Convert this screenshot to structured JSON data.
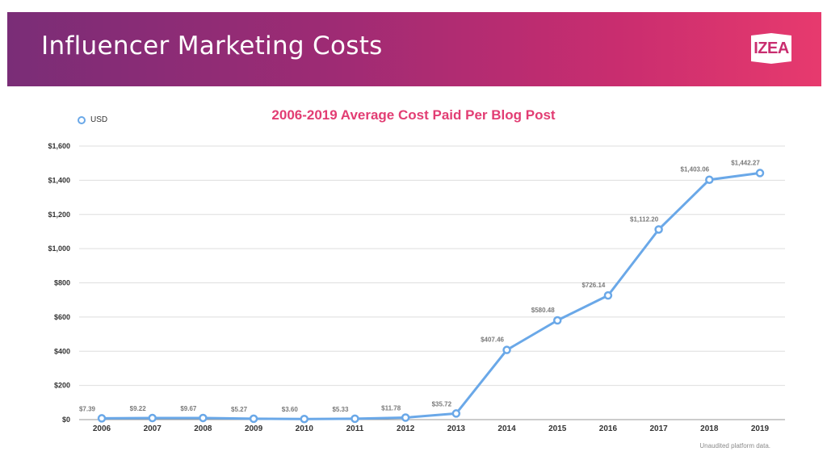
{
  "header": {
    "title": "Influencer Marketing Costs",
    "logo_text": "IZEA",
    "gradient_start": "#7a2d77",
    "gradient_end": "#e73a6e"
  },
  "footnote": "Unaudited platform data.",
  "chart_data": {
    "type": "line",
    "title": "2006-2019 Average Cost Paid Per Blog Post",
    "legend_position": "top-left",
    "grid": true,
    "ylim": [
      0,
      1600
    ],
    "yticks": [
      0,
      200,
      400,
      600,
      800,
      1000,
      1200,
      1400,
      1600
    ],
    "ytick_labels": [
      "$0",
      "$200",
      "$400",
      "$600",
      "$800",
      "$1,000",
      "$1,200",
      "$1,400",
      "$1,600"
    ],
    "categories": [
      "2006",
      "2007",
      "2008",
      "2009",
      "2010",
      "2011",
      "2012",
      "2013",
      "2014",
      "2015",
      "2016",
      "2017",
      "2018",
      "2019"
    ],
    "series": [
      {
        "name": "USD",
        "color": "#6aa8e8",
        "values": [
          7.39,
          9.22,
          9.67,
          5.27,
          3.6,
          5.33,
          11.78,
          35.72,
          407.46,
          580.48,
          726.14,
          1112.2,
          1403.06,
          1442.27
        ],
        "labels": [
          "$7.39",
          "$9.22",
          "$9.67",
          "$5.27",
          "$3.60",
          "$5.33",
          "$11.78",
          "$35.72",
          "$407.46",
          "$580.48",
          "$726.14",
          "$1,112.20",
          "$1,403.06",
          "$1,442.27"
        ]
      }
    ]
  }
}
